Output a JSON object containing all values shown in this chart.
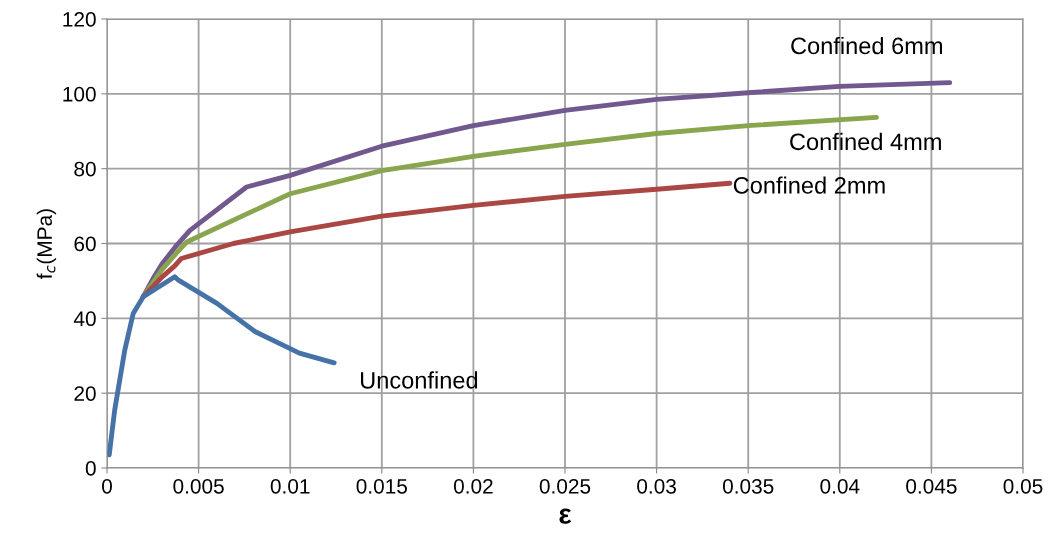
{
  "chart_data": {
    "type": "line",
    "xlabel": "ε",
    "ylabel": "f$_{c}$(MPa)",
    "xlim": [
      0,
      0.05
    ],
    "ylim": [
      0,
      120
    ],
    "xticks": [
      {
        "value": 0,
        "label": "0"
      },
      0.005,
      0.01,
      0.015,
      0.02,
      0.025,
      0.03,
      0.035,
      0.04,
      0.045,
      0.05
    ],
    "yticks": [
      0,
      20,
      40,
      60,
      80,
      100,
      120
    ],
    "grid": true,
    "legend": false,
    "marker": "none",
    "line_style": "solid",
    "series": [
      {
        "color": "#4572a7",
        "x": [
          0.00012,
          0.00042,
          0.00097,
          0.00143,
          0.00198,
          0.0037,
          0.0039,
          0.006,
          0.0081,
          0.0105,
          0.0124
        ],
        "values": [
          3.5,
          15.5,
          31.5,
          41.3,
          45.8,
          51.1,
          50.2,
          44,
          36.4,
          30.7,
          28.1
        ]
      },
      {
        "color": "#aa4643",
        "x": [
          0.00198,
          0.003,
          0.0037,
          0.00406,
          0.0069,
          0.01,
          0.015,
          0.02,
          0.025,
          0.03,
          0.034
        ],
        "values": [
          45.8,
          51,
          54,
          56,
          60,
          63.1,
          67.3,
          70.2,
          72.6,
          74.5,
          76.1
        ]
      },
      {
        "color": "#89a54e",
        "x": [
          0.00198,
          0.003,
          0.0038,
          0.00435,
          0.01,
          0.015,
          0.02,
          0.025,
          0.03,
          0.035,
          0.042
        ],
        "values": [
          45.8,
          53,
          57.5,
          60.4,
          73.3,
          79.5,
          83.3,
          86.5,
          89.4,
          91.5,
          93.7
        ]
      },
      {
        "color": "#71588f",
        "x": [
          0.00198,
          0.0025,
          0.003,
          0.0038,
          0.00453,
          0.00762,
          0.01,
          0.015,
          0.02,
          0.025,
          0.03,
          0.035,
          0.04,
          0.046
        ],
        "values": [
          45.8,
          50.5,
          54.5,
          59.5,
          63.5,
          75.1,
          78.2,
          86,
          91.5,
          95.6,
          98.5,
          100.3,
          102,
          103
        ]
      }
    ],
    "annotations": [
      "Unconfined",
      "Confined 2mm",
      "Confined 4mm",
      "Confined 6mm"
    ]
  }
}
